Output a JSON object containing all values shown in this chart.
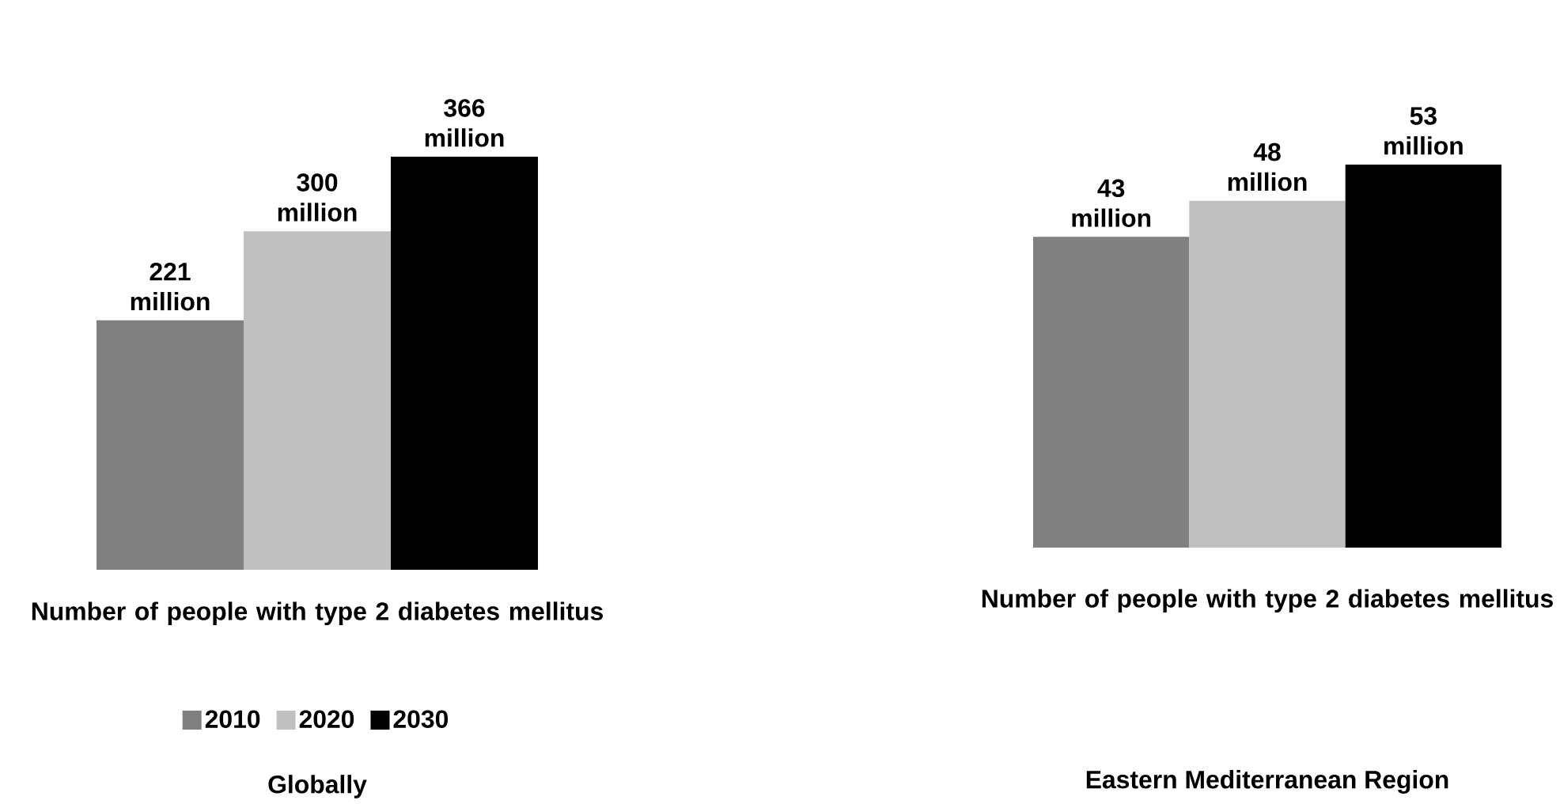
{
  "chart_data": [
    {
      "type": "bar",
      "title": "Globally",
      "xlabel": "Number of people with type 2 diabetes mellitus",
      "categories": [
        null
      ],
      "legend": "bottom",
      "series": [
        {
          "name": "2010",
          "color": "#808080",
          "values": [
            221
          ],
          "value_labels": [
            "221 million"
          ]
        },
        {
          "name": "2020",
          "color": "#c0c0c0",
          "values": [
            300
          ],
          "value_labels": [
            "300 million"
          ]
        },
        {
          "name": "2030",
          "color": "#000000",
          "values": [
            366
          ],
          "value_labels": [
            "366 million"
          ]
        }
      ]
    },
    {
      "type": "bar",
      "title": "Eastern Mediterranean Region",
      "xlabel": "Number of people with type 2 diabetes mellitus",
      "categories": [
        null
      ],
      "legend": false,
      "series": [
        {
          "color": "#808080",
          "values": [
            43
          ],
          "value_labels": [
            "43 million"
          ]
        },
        {
          "color": "#c0c0c0",
          "values": [
            48
          ],
          "value_labels": [
            "48 million"
          ]
        },
        {
          "color": "#000000",
          "values": [
            53
          ],
          "value_labels": [
            "53 million"
          ]
        }
      ]
    }
  ]
}
